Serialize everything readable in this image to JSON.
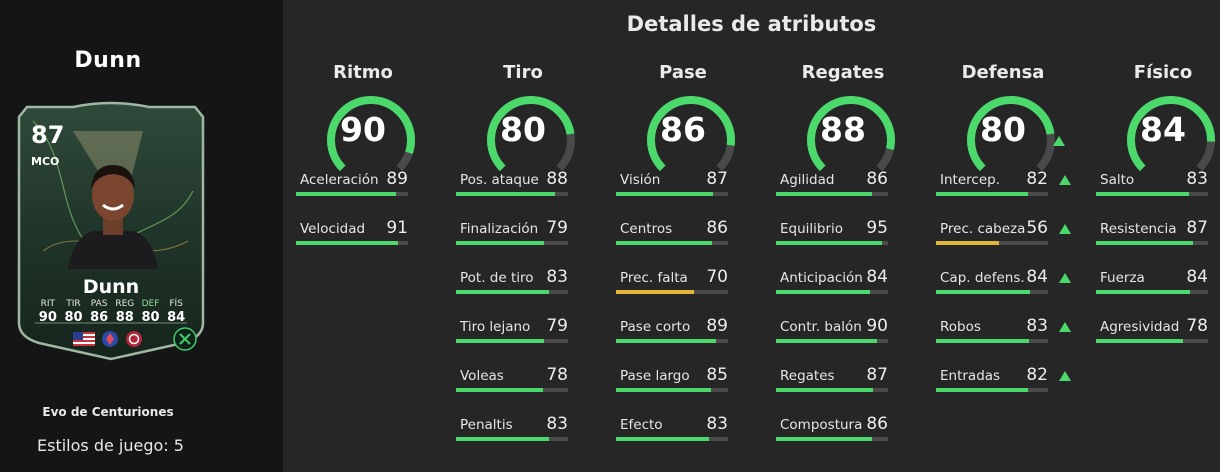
{
  "title": "Detalles de atributos",
  "player": {
    "name": "Dunn",
    "rating": "87",
    "position": "MCO",
    "card_stats": [
      {
        "label": "RIT",
        "value": "90"
      },
      {
        "label": "TIR",
        "value": "80"
      },
      {
        "label": "PAS",
        "value": "86"
      },
      {
        "label": "REG",
        "value": "88"
      },
      {
        "label": "DEF",
        "value": "80"
      },
      {
        "label": "FÍS",
        "value": "84"
      }
    ],
    "evolution_name": "Evo de Centuriones",
    "playstyles_label": "Estilos de juego: 5"
  },
  "colors": {
    "high": "#4cd96b",
    "medium": "#e0b53a",
    "track": "#4a4a4a",
    "upgrade": "#4cd96b"
  },
  "categories": [
    {
      "name": "Ritmo",
      "value": 90,
      "upgraded": false,
      "stats": [
        {
          "name": "Aceleración",
          "value": 89,
          "upgraded": false
        },
        {
          "name": "Velocidad",
          "value": 91,
          "upgraded": false
        }
      ]
    },
    {
      "name": "Tiro",
      "value": 80,
      "upgraded": false,
      "stats": [
        {
          "name": "Pos. ataque",
          "value": 88,
          "upgraded": false
        },
        {
          "name": "Finalización",
          "value": 79,
          "upgraded": false
        },
        {
          "name": "Pot. de tiro",
          "value": 83,
          "upgraded": false
        },
        {
          "name": "Tiro lejano",
          "value": 79,
          "upgraded": false
        },
        {
          "name": "Voleas",
          "value": 78,
          "upgraded": false
        },
        {
          "name": "Penaltis",
          "value": 83,
          "upgraded": false
        }
      ]
    },
    {
      "name": "Pase",
      "value": 86,
      "upgraded": false,
      "stats": [
        {
          "name": "Visión",
          "value": 87,
          "upgraded": false
        },
        {
          "name": "Centros",
          "value": 86,
          "upgraded": false
        },
        {
          "name": "Prec. falta",
          "value": 70,
          "upgraded": false
        },
        {
          "name": "Pase corto",
          "value": 89,
          "upgraded": false
        },
        {
          "name": "Pase largo",
          "value": 85,
          "upgraded": false
        },
        {
          "name": "Efecto",
          "value": 83,
          "upgraded": false
        }
      ]
    },
    {
      "name": "Regates",
      "value": 88,
      "upgraded": false,
      "stats": [
        {
          "name": "Agilidad",
          "value": 86,
          "upgraded": false
        },
        {
          "name": "Equilibrio",
          "value": 95,
          "upgraded": false
        },
        {
          "name": "Anticipación",
          "value": 84,
          "upgraded": false
        },
        {
          "name": "Contr. balón",
          "value": 90,
          "upgraded": false
        },
        {
          "name": "Regates",
          "value": 87,
          "upgraded": false
        },
        {
          "name": "Compostura",
          "value": 86,
          "upgraded": false
        }
      ]
    },
    {
      "name": "Defensa",
      "value": 80,
      "upgraded": true,
      "stats": [
        {
          "name": "Intercep.",
          "value": 82,
          "upgraded": true
        },
        {
          "name": "Prec. cabeza",
          "value": 56,
          "upgraded": true
        },
        {
          "name": "Cap. defens.",
          "value": 84,
          "upgraded": true
        },
        {
          "name": "Robos",
          "value": 83,
          "upgraded": true
        },
        {
          "name": "Entradas",
          "value": 82,
          "upgraded": true
        }
      ]
    },
    {
      "name": "Físico",
      "value": 84,
      "upgraded": false,
      "stats": [
        {
          "name": "Salto",
          "value": 83,
          "upgraded": false
        },
        {
          "name": "Resistencia",
          "value": 87,
          "upgraded": false
        },
        {
          "name": "Fuerza",
          "value": 84,
          "upgraded": false
        },
        {
          "name": "Agresividad",
          "value": 78,
          "upgraded": false
        }
      ]
    }
  ]
}
